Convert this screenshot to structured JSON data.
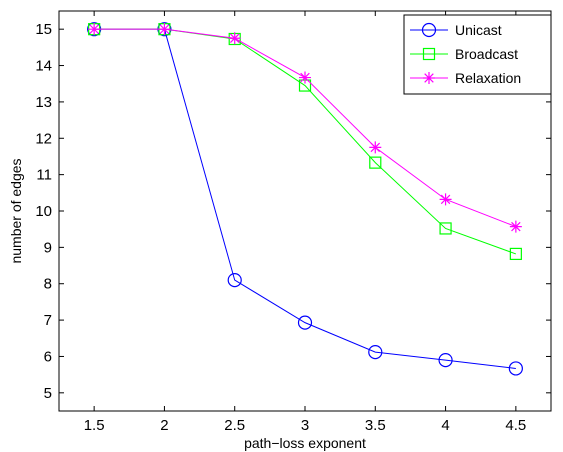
{
  "chart_data": {
    "type": "line",
    "xlabel": "path−loss exponent",
    "ylabel": "number of edges",
    "xlim": [
      1.25,
      4.75
    ],
    "ylim": [
      4.5,
      15.5
    ],
    "x_ticks": [
      "1.5",
      "2",
      "2.5",
      "3",
      "3.5",
      "4",
      "4.5"
    ],
    "y_ticks": [
      "5",
      "6",
      "7",
      "8",
      "9",
      "10",
      "11",
      "12",
      "13",
      "14",
      "15"
    ],
    "x": [
      1.5,
      2,
      2.5,
      3,
      3.5,
      4,
      4.5
    ],
    "grid": false,
    "legend_position": "top-right",
    "series": [
      {
        "name": "Unicast",
        "values": [
          15,
          15,
          8.1,
          6.93,
          6.12,
          5.9,
          5.67
        ],
        "color": "#0000ff",
        "marker": "circle"
      },
      {
        "name": "Broadcast",
        "values": [
          15,
          15,
          14.73,
          13.45,
          11.33,
          9.52,
          8.82
        ],
        "color": "#00ff00",
        "marker": "square"
      },
      {
        "name": "Relaxation",
        "values": [
          15,
          15,
          14.75,
          13.67,
          11.75,
          10.32,
          9.57
        ],
        "color": "#ff00ff",
        "marker": "asterisk"
      }
    ]
  }
}
